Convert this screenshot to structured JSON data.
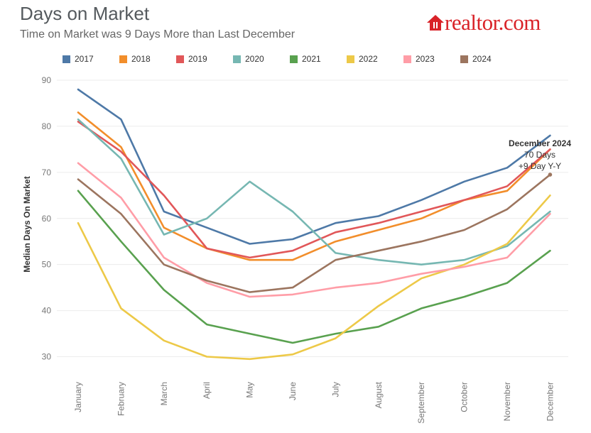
{
  "header": {
    "title": "Days on Market",
    "subtitle": "Time on Market was 9 Days More than Last December",
    "logo_text": "realtor.com",
    "logo_color": "#d92228"
  },
  "chart_data": {
    "type": "line",
    "title": "Days on Market",
    "subtitle": "Time on Market was 9 Days More than Last December",
    "xlabel": "",
    "ylabel": "Median Days On Market",
    "ylim": [
      27,
      92
    ],
    "yticks": [
      30,
      40,
      50,
      60,
      70,
      80,
      90
    ],
    "grid": true,
    "legend_position": "top",
    "categories": [
      "January",
      "February",
      "March",
      "April",
      "May",
      "June",
      "July",
      "August",
      "September",
      "October",
      "November",
      "December"
    ],
    "series": [
      {
        "name": "2017",
        "color": "#4e79a7",
        "values": [
          88,
          81.5,
          61.5,
          58,
          54.5,
          55.5,
          59,
          60.5,
          64,
          68,
          71,
          78
        ]
      },
      {
        "name": "2018",
        "color": "#f28e2b",
        "values": [
          83,
          75.5,
          58,
          53.5,
          51,
          51,
          55,
          57.5,
          60,
          64,
          66,
          75
        ]
      },
      {
        "name": "2019",
        "color": "#e15759",
        "values": [
          81,
          74.5,
          65,
          53.5,
          51.5,
          53,
          57,
          59,
          61.5,
          64,
          67,
          75
        ]
      },
      {
        "name": "2020",
        "color": "#76b7b2",
        "values": [
          81.5,
          73,
          56.5,
          60,
          68,
          61.5,
          52.5,
          51,
          50,
          51,
          54,
          61.5
        ]
      },
      {
        "name": "2021",
        "color": "#59a14f",
        "values": [
          66,
          55,
          44.5,
          37,
          35,
          33,
          35,
          36.5,
          40.5,
          43,
          46,
          53
        ]
      },
      {
        "name": "2022",
        "color": "#edc948",
        "values": [
          59,
          40.5,
          33.5,
          30,
          29.5,
          30.5,
          34,
          41,
          47,
          50,
          54.5,
          65
        ]
      },
      {
        "name": "2023",
        "color": "#ff9da7",
        "values": [
          72,
          64.5,
          51.5,
          46,
          43,
          43.5,
          45,
          46,
          48,
          49.5,
          51.5,
          61
        ]
      },
      {
        "name": "2024",
        "color": "#9c755f",
        "values": [
          68.5,
          61,
          50,
          46.5,
          44,
          45,
          51,
          53,
          55,
          57.5,
          62,
          69.5
        ]
      }
    ],
    "annotation": {
      "lines": [
        "December 2024",
        "70 Days",
        "+9 Day Y-Y"
      ],
      "series": "2024",
      "category": "December"
    }
  }
}
